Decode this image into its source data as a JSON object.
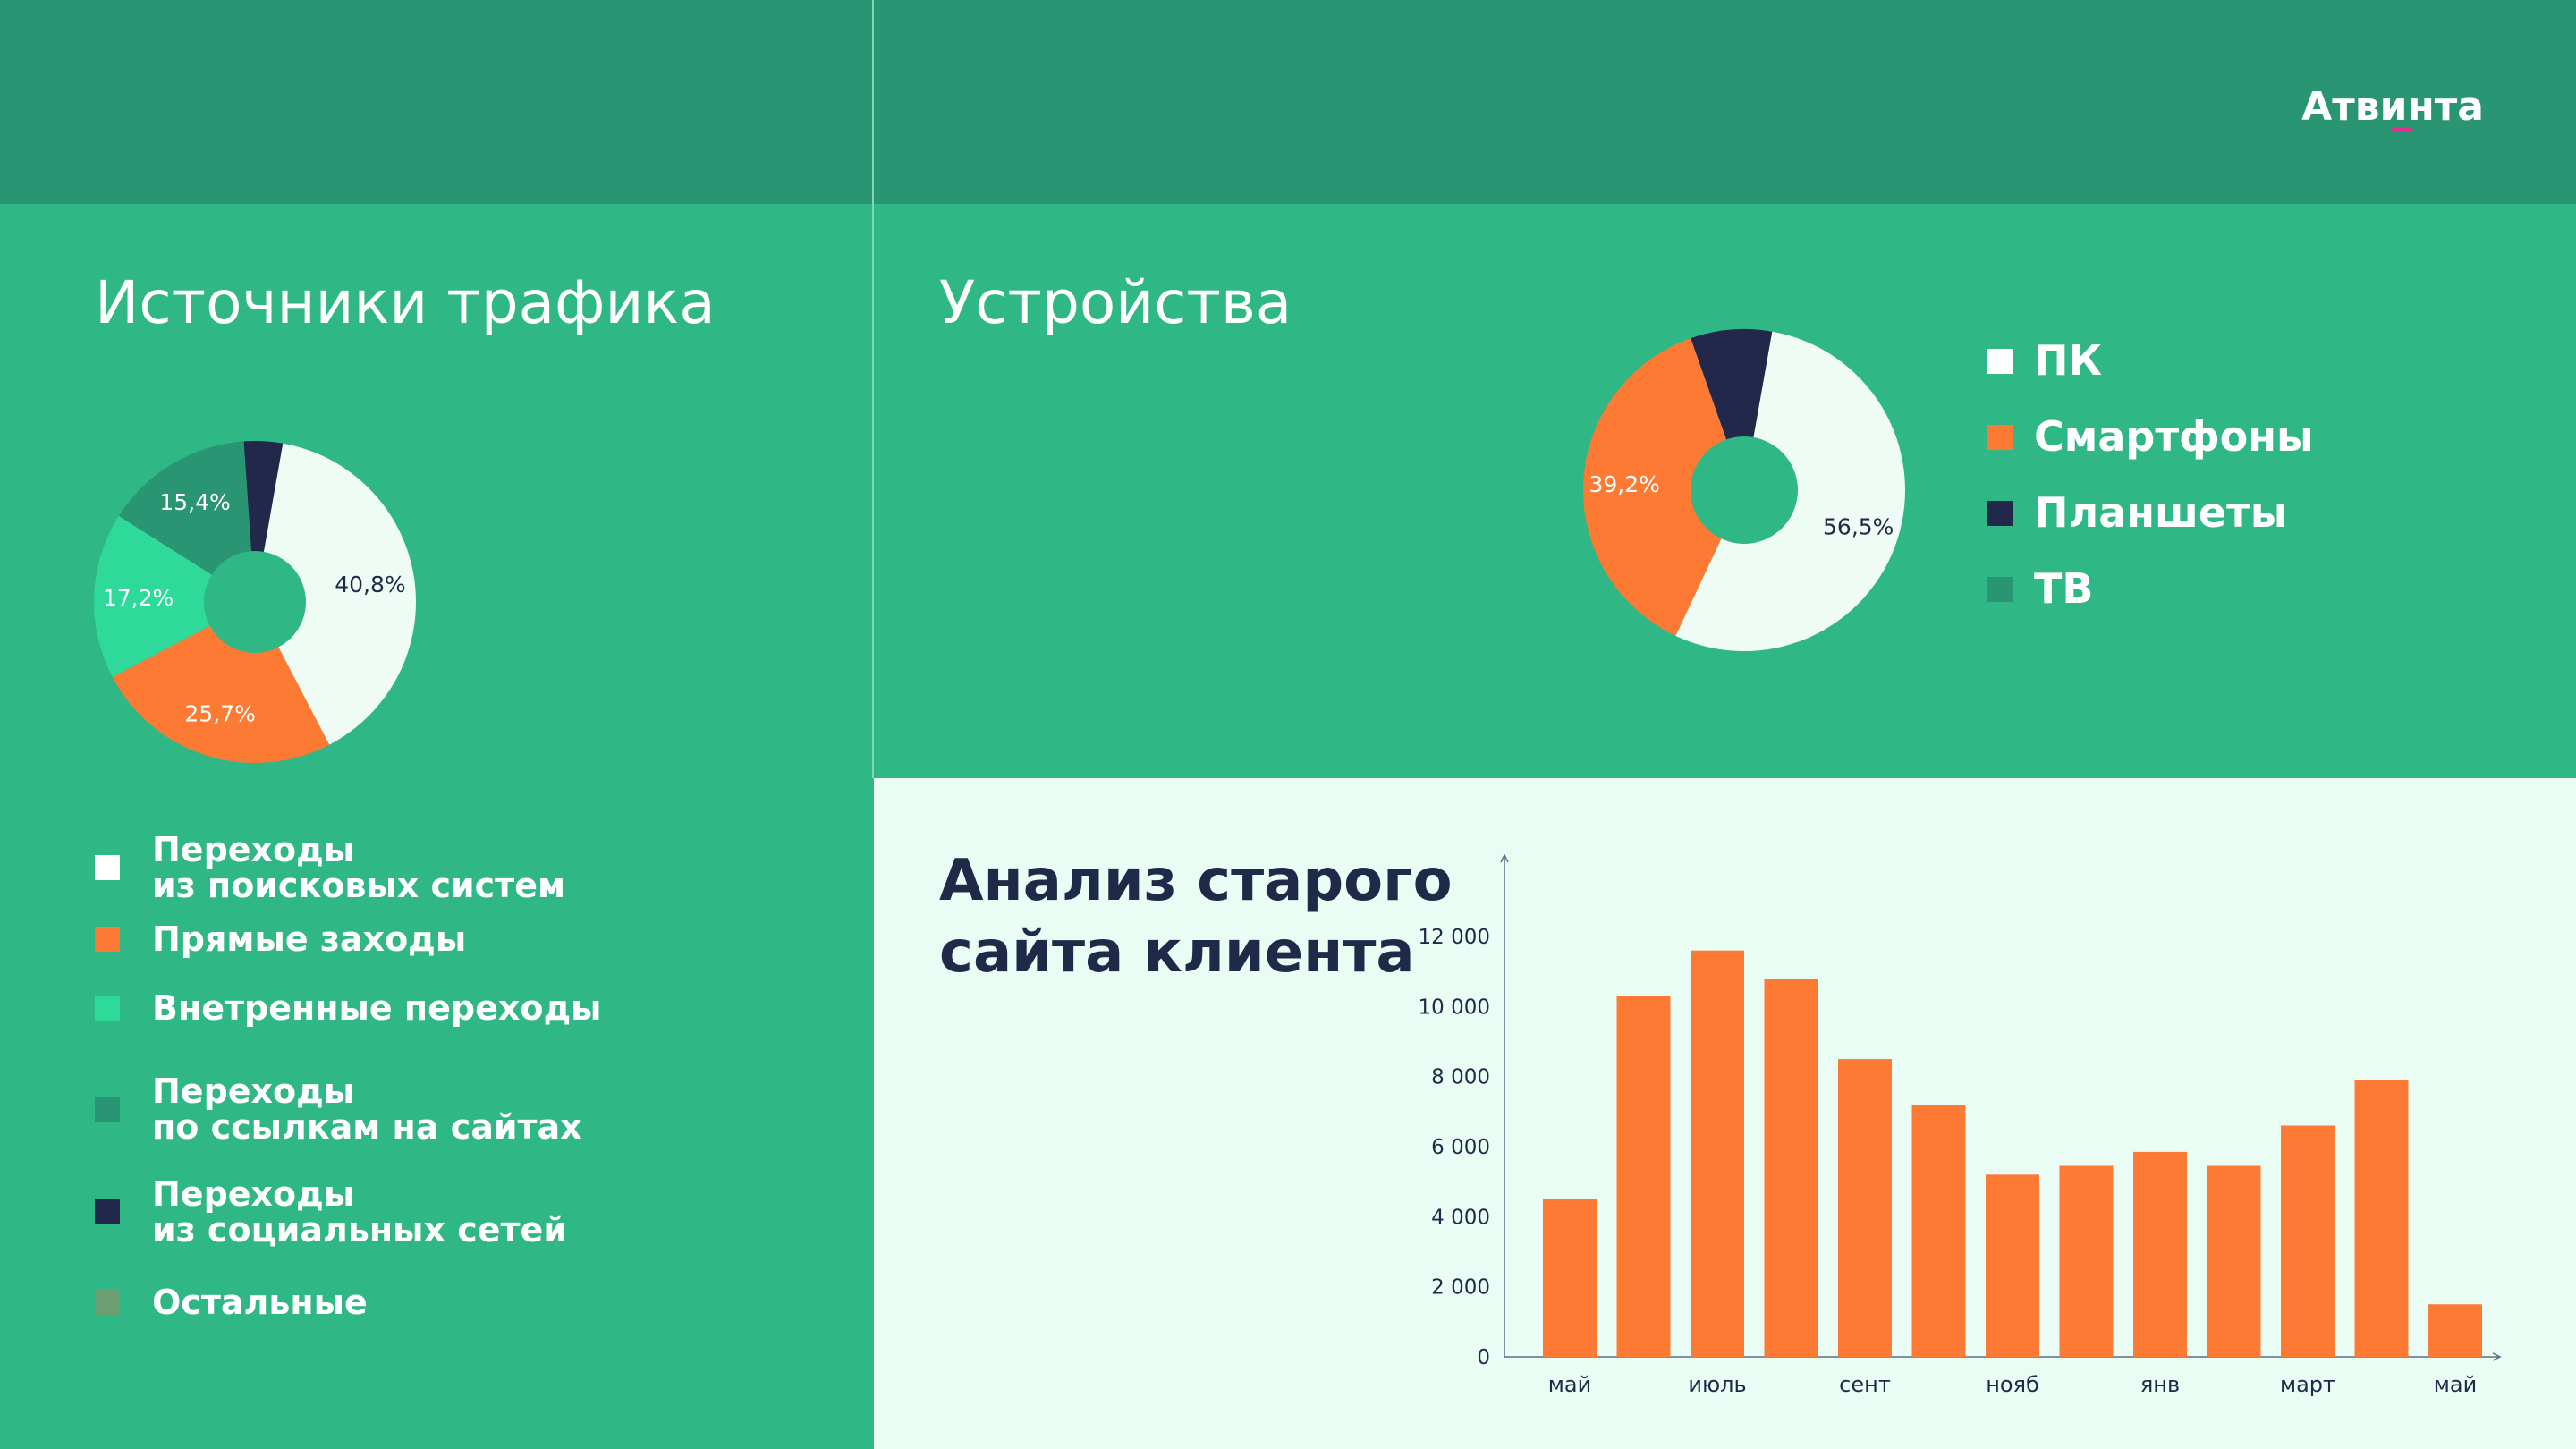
{
  "logo": {
    "text": "Атвинта"
  },
  "traffic": {
    "title": "Источники трафика",
    "legend": [
      {
        "line1": "Переходы",
        "line2": "из поисковых систем",
        "color": "#ffffff"
      },
      {
        "line1": "Прямые заходы",
        "line2": "",
        "color": "#fc7a33"
      },
      {
        "line1": "Внетренные переходы",
        "line2": "",
        "color": "#2fd99a"
      },
      {
        "line1": "Переходы",
        "line2": "по ссылкам на сайтах",
        "color": "#2a9572"
      },
      {
        "line1": "Переходы",
        "line2": "из социальных сетей",
        "color": "#22284a"
      },
      {
        "line1": "Остальные",
        "line2": "",
        "color": "#6b9e71"
      }
    ]
  },
  "devices": {
    "title": "Устройства",
    "legend": [
      {
        "label": "ПК",
        "color": "#ffffff"
      },
      {
        "label": "Смартфоны",
        "color": "#fc7a33"
      },
      {
        "label": "Планшеты",
        "color": "#22284a"
      },
      {
        "label": "ТВ",
        "color": "#2a9572"
      }
    ]
  },
  "analysis": {
    "title_line1": "Анализ старого",
    "title_line2": "сайта клиента"
  },
  "chart_data": [
    {
      "type": "pie",
      "variant": "donut",
      "slices": [
        {
          "name": "Переходы из поисковых систем",
          "value": 40.8,
          "label": "40,8%",
          "color": "#effcf6"
        },
        {
          "name": "Прямые заходы",
          "value": 25.7,
          "label": "25,7%",
          "color": "#fc7a33"
        },
        {
          "name": "Внетренные переходы",
          "value": 17.2,
          "label": "17,2%",
          "color": "#2fd99a"
        },
        {
          "name": "Переходы по ссылкам на сайтах",
          "value": 15.4,
          "label": "15,4%",
          "color": "#2a9572"
        },
        {
          "name": "Переходы из социальных сетей",
          "value": 4.0,
          "label": "",
          "color": "#22284a"
        }
      ]
    },
    {
      "type": "pie",
      "variant": "donut",
      "slices": [
        {
          "name": "ПК",
          "value": 56.5,
          "label": "56,5%",
          "color": "#effcf6"
        },
        {
          "name": "Смартфоны",
          "value": 39.2,
          "label": "39,2%",
          "color": "#fc7a33"
        },
        {
          "name": "Планшеты",
          "value": 8.5,
          "label": "",
          "color": "#22284a"
        }
      ]
    },
    {
      "type": "bar",
      "categories": [
        "май",
        "",
        "июль",
        "",
        "сент",
        "",
        "нояб",
        "",
        "янв",
        "",
        "март",
        "",
        "май"
      ],
      "values": [
        4500,
        10300,
        11600,
        10800,
        8500,
        7200,
        5200,
        5450,
        5850,
        5450,
        6600,
        7900,
        1500
      ],
      "yticks": [
        0,
        2000,
        4000,
        6000,
        8000,
        10000,
        12000
      ],
      "ytick_labels": [
        "0",
        "2 000",
        "4 000",
        "6 000",
        "8 000",
        "10 000",
        "12 000"
      ],
      "ylim": [
        0,
        14000
      ],
      "bar_color": "#fc7a33",
      "axis_color": "#5b6e85"
    }
  ]
}
